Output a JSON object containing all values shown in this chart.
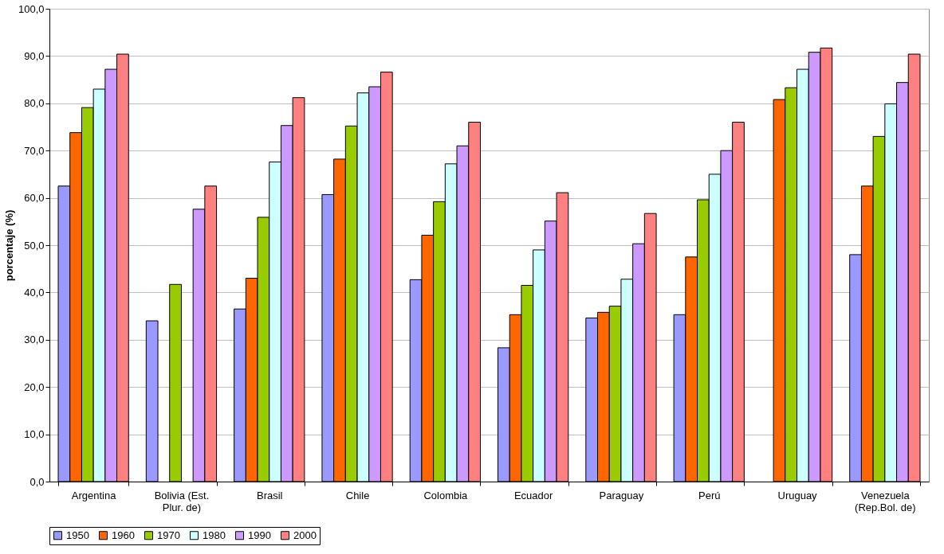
{
  "chart_data": {
    "type": "bar",
    "ylabel": "porcentaje (%)",
    "categories": [
      "Argentina",
      "Bolivia (Est.\nPlur. de)",
      "Brasil",
      "Chile",
      "Colombia",
      "Ecuador",
      "Paraguay",
      "Perú",
      "Uruguay",
      "Venezuela\n(Rep.Bol. de)"
    ],
    "series": [
      {
        "name": "1950",
        "color": "#9999ff",
        "values": [
          62.5,
          34.0,
          36.5,
          60.7,
          42.7,
          28.3,
          34.6,
          35.3,
          null,
          48.0
        ]
      },
      {
        "name": "1960",
        "color": "#ff6600",
        "values": [
          73.8,
          null,
          43.0,
          68.2,
          52.1,
          35.3,
          35.8,
          47.5,
          80.8,
          62.5
        ]
      },
      {
        "name": "1970",
        "color": "#99cc00",
        "values": [
          79.1,
          41.7,
          55.9,
          75.2,
          59.2,
          41.5,
          37.1,
          59.6,
          83.3,
          73.0
        ]
      },
      {
        "name": "1980",
        "color": "#ccffff",
        "values": [
          83.0,
          null,
          67.6,
          82.2,
          67.2,
          49.0,
          42.8,
          65.0,
          87.2,
          79.9
        ]
      },
      {
        "name": "1990",
        "color": "#cc99ff",
        "values": [
          87.2,
          57.6,
          75.3,
          83.5,
          71.0,
          55.1,
          50.3,
          70.0,
          90.8,
          84.4
        ]
      },
      {
        "name": "2000",
        "color": "#ff8080",
        "values": [
          90.4,
          62.5,
          81.2,
          86.6,
          76.0,
          61.1,
          56.7,
          76.0,
          91.7,
          90.4
        ]
      }
    ],
    "ylim": [
      0,
      100
    ],
    "yticks": [
      {
        "value": 0,
        "label": "0,0"
      },
      {
        "value": 10,
        "label": "10,0"
      },
      {
        "value": 20,
        "label": "20,0"
      },
      {
        "value": 30,
        "label": "30,0"
      },
      {
        "value": 40,
        "label": "40,0"
      },
      {
        "value": 50,
        "label": "50,0"
      },
      {
        "value": 60,
        "label": "60,0"
      },
      {
        "value": 70,
        "label": "70,0"
      },
      {
        "value": 80,
        "label": "80,0"
      },
      {
        "value": 90,
        "label": "90,0"
      },
      {
        "value": 100,
        "label": "100,0"
      }
    ],
    "grid": "y",
    "legend": "bottom"
  }
}
